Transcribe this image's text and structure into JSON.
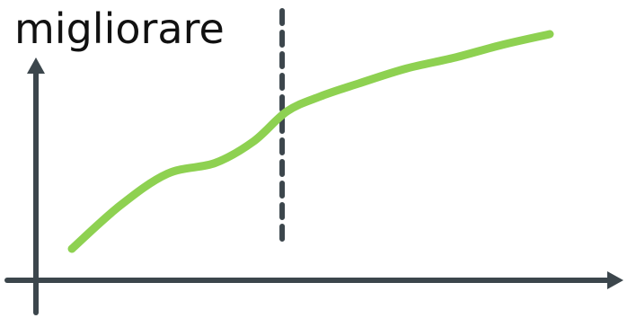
{
  "chart_data": {
    "type": "line",
    "title": "migliorare",
    "xlabel": "",
    "ylabel": "",
    "xlim": [
      0,
      100
    ],
    "ylim": [
      0,
      100
    ],
    "grid": false,
    "series": [
      {
        "x": [
          0,
          10,
          20,
          30,
          38,
          45,
          52,
          60,
          70,
          80,
          90,
          100
        ],
        "y": [
          0,
          20,
          35,
          40,
          50,
          64,
          71,
          77,
          84,
          89,
          95,
          100
        ],
        "color": "#8ed151"
      }
    ],
    "vline": {
      "x": 44,
      "style": "dashed",
      "color": "#3c464c"
    },
    "axis_color": "#3c464c"
  }
}
